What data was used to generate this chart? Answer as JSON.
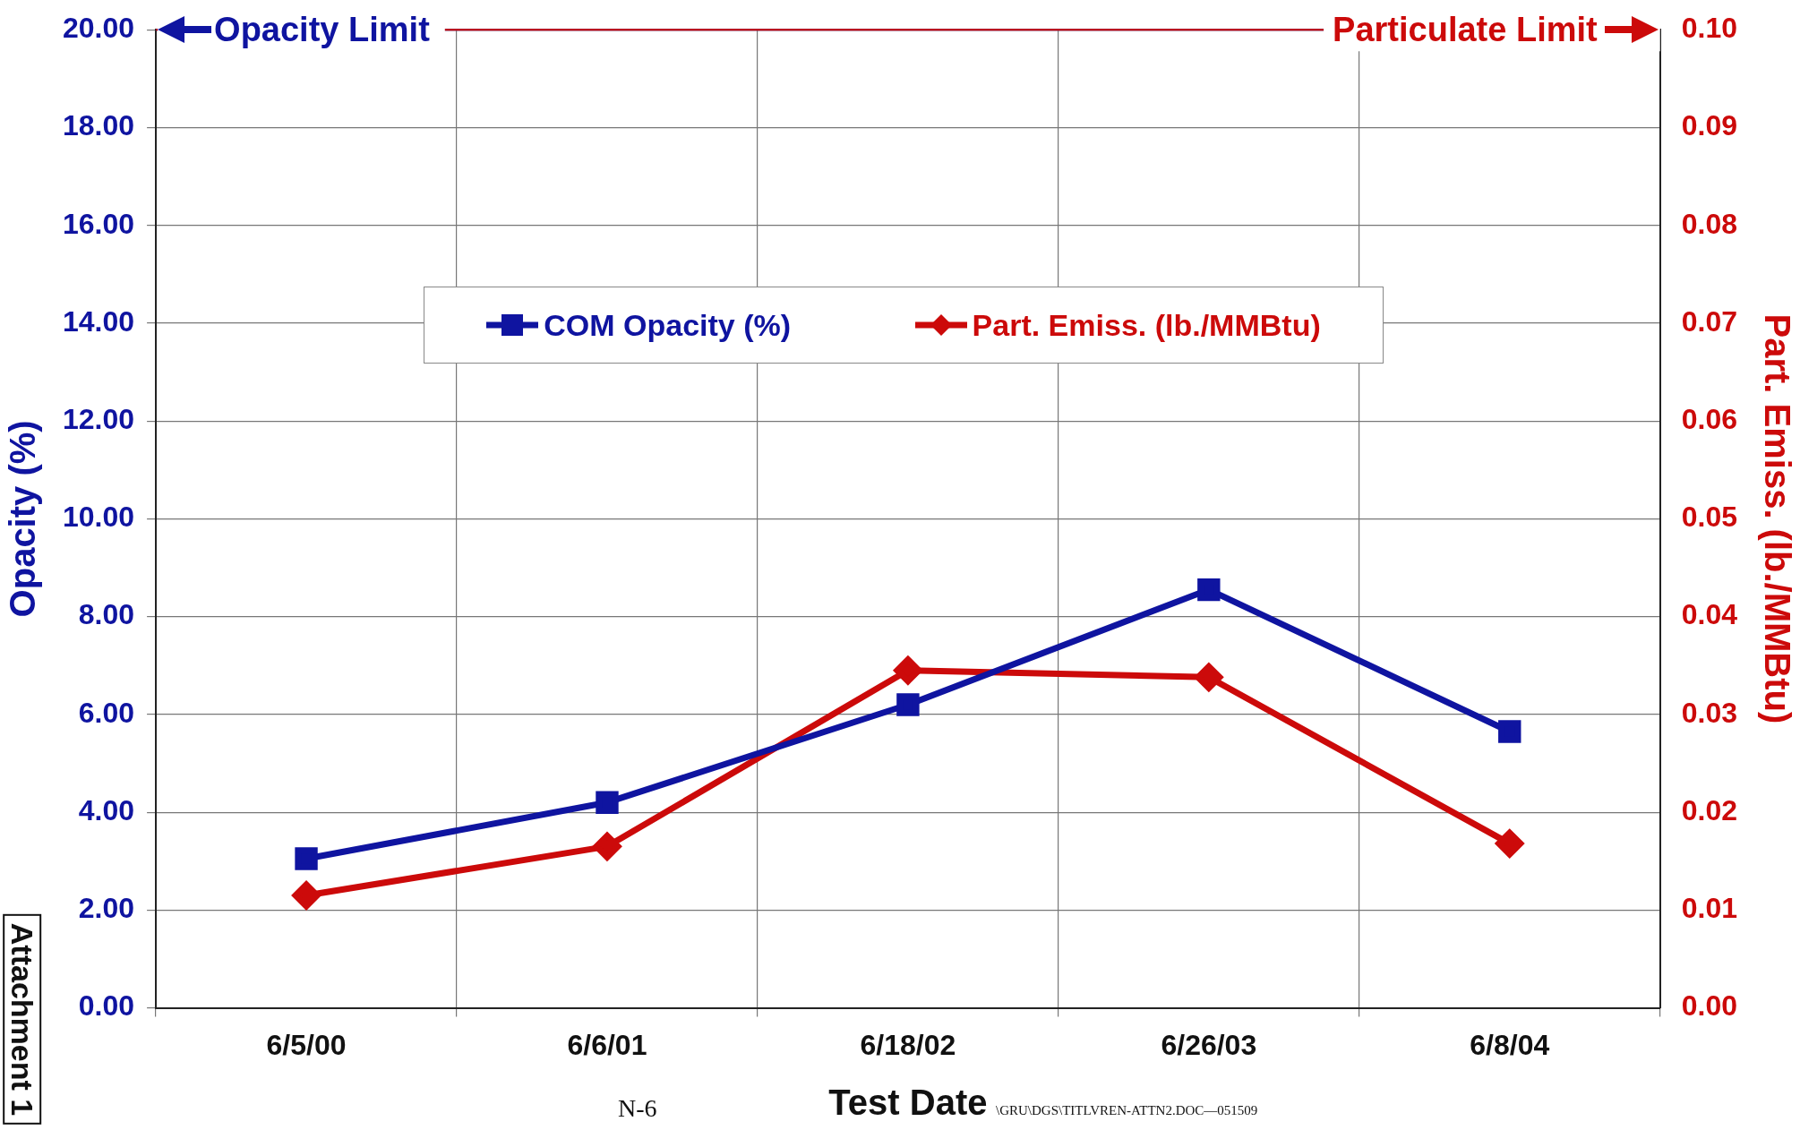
{
  "chart_data": {
    "type": "line",
    "xlabel": "Test Date",
    "ylabel": "Opacity (%)",
    "y2label": "Part. Emiss. (lb./MMBtu)",
    "categories": [
      "6/5/00",
      "6/6/01",
      "6/18/02",
      "6/26/03",
      "6/8/04"
    ],
    "series": [
      {
        "name": "COM Opacity (%)",
        "color": "#0f14a0",
        "marker": "square",
        "values": [
          3.05,
          4.2,
          6.2,
          8.55,
          5.65
        ]
      },
      {
        "name": "Part. Emiss. (lb./MMBtu)",
        "color": "#cc0a0a",
        "marker": "diamond",
        "axis": "y2",
        "values": [
          0.0115,
          0.0165,
          0.0345,
          0.0338,
          0.0168
        ]
      }
    ],
    "ylim": [
      0,
      20
    ],
    "yticks": [
      {
        "value": 0,
        "label": "0.00"
      },
      {
        "value": 2,
        "label": "2.00"
      },
      {
        "value": 4,
        "label": "4.00"
      },
      {
        "value": 6,
        "label": "6.00"
      },
      {
        "value": 8,
        "label": "8.00"
      },
      {
        "value": 10,
        "label": "10.00"
      },
      {
        "value": 12,
        "label": "12.00"
      },
      {
        "value": 14,
        "label": "14.00"
      },
      {
        "value": 16,
        "label": "16.00"
      },
      {
        "value": 18,
        "label": "18.00"
      },
      {
        "value": 20,
        "label": "20.00"
      }
    ],
    "y2lim": [
      0,
      0.1
    ],
    "y2ticks": [
      {
        "value": 0,
        "label": "0.00"
      },
      {
        "value": 0.01,
        "label": "0.01"
      },
      {
        "value": 0.02,
        "label": "0.02"
      },
      {
        "value": 0.03,
        "label": "0.03"
      },
      {
        "value": 0.04,
        "label": "0.04"
      },
      {
        "value": 0.05,
        "label": "0.05"
      },
      {
        "value": 0.06,
        "label": "0.06"
      },
      {
        "value": 0.07,
        "label": "0.07"
      },
      {
        "value": 0.08,
        "label": "0.08"
      },
      {
        "value": 0.09,
        "label": "0.09"
      },
      {
        "value": 0.1,
        "label": "0.10"
      }
    ],
    "ref_lines": [
      {
        "axis": "y",
        "value": 20,
        "label": "Opacity Limit",
        "color": "#0f14a0"
      },
      {
        "axis": "y2",
        "value": 0.1,
        "label": "Particulate Limit",
        "color": "#cc0a0a"
      }
    ],
    "grid": true,
    "legend": "top",
    "annotations": [
      "N-6",
      "\\GRU\\DGS\\TITLVREN-ATTN2.DOC—051509",
      "Attachment 1"
    ]
  }
}
